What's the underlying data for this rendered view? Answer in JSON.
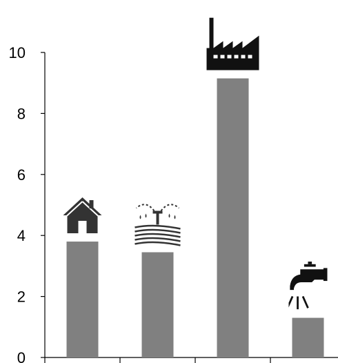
{
  "chart_data": {
    "type": "bar",
    "title": "",
    "xlabel": "",
    "ylabel": "",
    "categories": [
      "",
      "",
      "",
      ""
    ],
    "values": [
      3.8,
      3.45,
      9.15,
      1.3
    ],
    "category_icons": [
      "house-icon",
      "irrigation-field-icon",
      "factory-icon",
      "faucet-icon"
    ],
    "ylim": [
      0,
      10
    ],
    "yticks": [
      "0",
      "2",
      "4",
      "6",
      "8",
      "10"
    ],
    "grid": false,
    "bar_color": "#808080",
    "axis_color": "#000000",
    "icon_color": "#333333"
  }
}
